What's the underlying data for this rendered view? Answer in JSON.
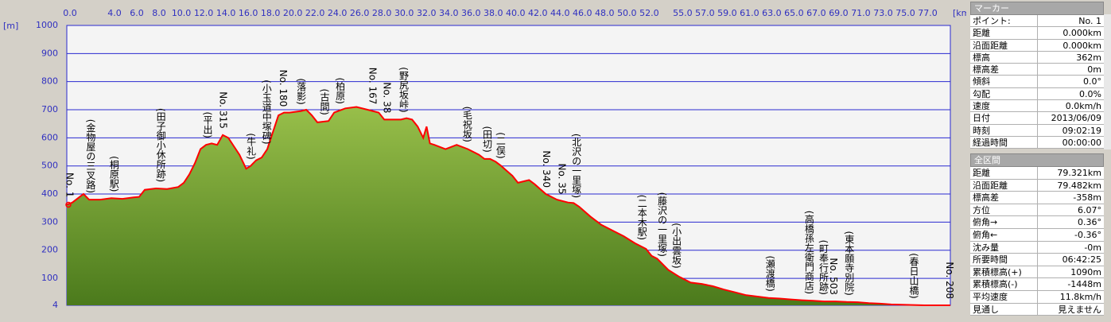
{
  "chart_data": {
    "type": "area",
    "y_unit": "[m]",
    "x_unit": "[km]",
    "x": [
      0,
      0.5,
      1,
      1.5,
      2,
      3,
      4,
      5,
      6,
      6.5,
      7,
      8,
      9,
      10,
      10.5,
      11,
      11.5,
      12,
      12.5,
      13,
      13.5,
      14,
      14.5,
      15,
      15.5,
      16.1,
      16.5,
      17,
      17.5,
      18,
      18.5,
      19,
      19.5,
      20,
      21,
      21.5,
      22,
      22.5,
      23.5,
      24,
      25,
      26,
      27,
      28,
      28.5,
      30,
      30.5,
      31,
      31.5,
      32,
      32.3,
      32.6,
      33,
      34,
      35,
      36,
      37,
      37.5,
      38,
      38.5,
      39,
      40,
      40.5,
      41,
      41.5,
      42,
      43,
      44,
      45,
      45.5,
      46,
      47,
      48,
      49,
      50,
      51,
      52,
      52.5,
      53,
      54,
      55,
      55.5,
      56,
      57,
      58,
      59,
      60,
      61,
      62,
      63,
      64,
      65,
      66,
      67,
      68,
      69,
      70,
      71,
      72,
      73,
      74,
      75,
      76,
      77,
      78,
      79.321
    ],
    "values": [
      362,
      370,
      385,
      400,
      380,
      380,
      385,
      383,
      388,
      390,
      415,
      420,
      418,
      425,
      440,
      470,
      510,
      560,
      575,
      580,
      575,
      610,
      600,
      570,
      540,
      490,
      500,
      520,
      530,
      560,
      620,
      680,
      690,
      690,
      695,
      700,
      680,
      655,
      660,
      690,
      705,
      710,
      700,
      690,
      665,
      665,
      670,
      665,
      640,
      600,
      640,
      580,
      575,
      560,
      575,
      560,
      540,
      525,
      525,
      515,
      500,
      465,
      440,
      445,
      450,
      435,
      400,
      380,
      370,
      368,
      355,
      320,
      290,
      270,
      250,
      225,
      205,
      180,
      170,
      130,
      105,
      95,
      85,
      80,
      72,
      60,
      50,
      40,
      35,
      30,
      28,
      25,
      22,
      20,
      18,
      18,
      16,
      15,
      12,
      10,
      7,
      6,
      5,
      4,
      4,
      4
    ],
    "xlim": [
      0,
      79.321
    ],
    "ylim": [
      4,
      1000
    ],
    "yticks": [
      4,
      100,
      200,
      300,
      400,
      500,
      600,
      700,
      800,
      900,
      1000
    ],
    "xticks": [
      {
        "value": 0,
        "label": "0.0"
      },
      {
        "value": 4,
        "label": "4.0"
      },
      {
        "value": 6,
        "label": "6.0"
      },
      {
        "value": 8,
        "label": "8.0"
      },
      {
        "value": 10,
        "label": "10.0"
      },
      {
        "value": 12,
        "label": "12.0"
      },
      {
        "value": 14,
        "label": "14.0"
      },
      {
        "value": 16,
        "label": "16.0"
      },
      {
        "value": 18,
        "label": "18.0"
      },
      {
        "value": 20,
        "label": "20.0"
      },
      {
        "value": 22,
        "label": "22.0"
      },
      {
        "value": 24,
        "label": "24.0"
      },
      {
        "value": 26,
        "label": "26.0"
      },
      {
        "value": 28,
        "label": "28.0"
      },
      {
        "value": 30,
        "label": "30.0"
      },
      {
        "value": 32,
        "label": "32.0"
      },
      {
        "value": 34,
        "label": "34.0"
      },
      {
        "value": 36,
        "label": "36.0"
      },
      {
        "value": 38,
        "label": "38.0"
      },
      {
        "value": 40,
        "label": "40.0"
      },
      {
        "value": 42,
        "label": "42.0"
      },
      {
        "value": 44,
        "label": "44.0"
      },
      {
        "value": 46,
        "label": "46.0"
      },
      {
        "value": 48,
        "label": "48.0"
      },
      {
        "value": 50,
        "label": "50.0"
      },
      {
        "value": 52,
        "label": "52.0"
      },
      {
        "value": 55,
        "label": "55.0"
      },
      {
        "value": 57,
        "label": "57.0"
      },
      {
        "value": 59,
        "label": "59.0"
      },
      {
        "value": 61,
        "label": "61.0"
      },
      {
        "value": 63,
        "label": "63.0"
      },
      {
        "value": 65,
        "label": "65.0"
      },
      {
        "value": 67,
        "label": "67.0"
      },
      {
        "value": 69,
        "label": "69.0"
      },
      {
        "value": 71,
        "label": "71.0"
      },
      {
        "value": 73,
        "label": "73.0"
      },
      {
        "value": 75,
        "label": "75.0"
      },
      {
        "value": 77,
        "label": "77.0"
      }
    ],
    "grid": true,
    "line_color": "#ff0000",
    "fill_color": "#6e9a2e",
    "grid_color": "#2a2ad0",
    "annotations": [
      {
        "text": "No. 1",
        "x": 0.2
      },
      {
        "text": "(金物屋の三叉路)",
        "x": 2.1
      },
      {
        "text": "(桐原駅)",
        "x": 4.2
      },
      {
        "text": "(田子御小休所跡)",
        "x": 8.4
      },
      {
        "text": "(平出)",
        "x": 12.6
      },
      {
        "text": "No. 315",
        "x": 14.0
      },
      {
        "text": "(牛礼)",
        "x": 16.5
      },
      {
        "text": "(小玉道中塚碑)",
        "x": 17.9
      },
      {
        "text": "No. 180",
        "x": 19.4
      },
      {
        "text": "(落影)",
        "x": 21.0
      },
      {
        "text": "(古間)",
        "x": 23.1
      },
      {
        "text": "(柏原)",
        "x": 24.5
      },
      {
        "text": "No. 167",
        "x": 27.4
      },
      {
        "text": "No. 38",
        "x": 28.7
      },
      {
        "text": "(野尻坂峠)",
        "x": 30.2
      },
      {
        "text": "(毛祝坂)",
        "x": 35.9
      },
      {
        "text": "(田切)",
        "x": 37.7
      },
      {
        "text": "(二俣)",
        "x": 38.9
      },
      {
        "text": "No. 340",
        "x": 43.0
      },
      {
        "text": "No. 35",
        "x": 44.4
      },
      {
        "text": "(北沢の一里塚)",
        "x": 45.7
      },
      {
        "text": "(二本木駅)",
        "x": 51.6
      },
      {
        "text": "(藤沢の一里塚)",
        "x": 53.4
      },
      {
        "text": "(小出雲坂)",
        "x": 54.7
      },
      {
        "text": "(瀬渡橋)",
        "x": 63.1
      },
      {
        "text": "(高橋孫左衛門商店)",
        "x": 66.6
      },
      {
        "text": "(町奉行所跡)",
        "x": 67.9
      },
      {
        "text": "No. 503",
        "x": 68.8
      },
      {
        "text": "(東本願寺別院)",
        "x": 70.2
      },
      {
        "text": "(春日山橋)",
        "x": 76.0
      },
      {
        "text": "No. 208",
        "x": 79.2
      }
    ]
  },
  "marker_panel": {
    "title": "マーカー",
    "rows": [
      [
        "ポイント:",
        "No. 1"
      ],
      [
        "距離",
        "0.000km"
      ],
      [
        "沿面距離",
        "0.000km"
      ],
      [
        "標高",
        "362m"
      ],
      [
        "標高差",
        "0m"
      ],
      [
        "傾斜",
        "0.0°"
      ],
      [
        "勾配",
        "0.0%"
      ],
      [
        "速度",
        "0.0km/h"
      ],
      [
        "日付",
        "2013/06/09"
      ],
      [
        "時刻",
        "09:02:19"
      ],
      [
        "経過時間",
        "00:00:00"
      ]
    ]
  },
  "summary_panel": {
    "title": "全区間",
    "rows": [
      [
        "距離",
        "79.321km"
      ],
      [
        "沿面距離",
        "79.482km"
      ],
      [
        "標高差",
        "-358m"
      ],
      [
        "方位",
        "6.07°"
      ],
      [
        "俯角→",
        "0.36°"
      ],
      [
        "俯角←",
        "-0.36°"
      ],
      [
        "沈み量",
        "-0m"
      ],
      [
        "所要時間",
        "06:42:25"
      ],
      [
        "累積標高(+)",
        "1090m"
      ],
      [
        "累積標高(-)",
        "-1448m"
      ],
      [
        "平均速度",
        "11.8km/h"
      ],
      [
        "見通し",
        "見えません"
      ]
    ]
  }
}
